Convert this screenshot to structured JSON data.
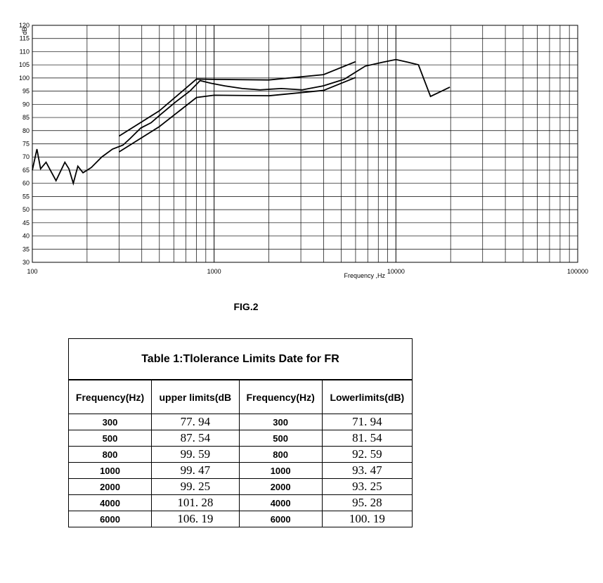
{
  "chart_data": {
    "type": "line",
    "x_label": "Frequency ,Hz",
    "y_label": "dB",
    "xscale": "log",
    "minor_grid": true,
    "xlim": [
      100,
      100000
    ],
    "xticks": [
      100,
      1000,
      10000,
      100000
    ],
    "ylim": [
      30,
      120
    ],
    "yticks": [
      30,
      35,
      40,
      45,
      50,
      55,
      60,
      65,
      70,
      75,
      80,
      85,
      90,
      95,
      100,
      105,
      110,
      115,
      120
    ],
    "grid": true,
    "series": [
      {
        "color": "#000000",
        "x": [
          300,
          500,
          800,
          1000,
          2000,
          4000,
          6000
        ],
        "values": [
          77.94,
          87.54,
          99.59,
          99.47,
          99.25,
          101.28,
          106.19
        ]
      },
      {
        "color": "#000000",
        "x": [
          300,
          500,
          800,
          1000,
          2000,
          4000,
          6000
        ],
        "values": [
          71.94,
          81.54,
          92.59,
          93.47,
          93.25,
          95.28,
          100.19
        ]
      },
      {
        "color": "#000000",
        "x": [
          100,
          106,
          111,
          119,
          135,
          151,
          159,
          168,
          178,
          190,
          211,
          241,
          276,
          315,
          345,
          395,
          450,
          515,
          617,
          735,
          837,
          961,
          1144,
          1430,
          1790,
          2340,
          3050,
          3980,
          5190,
          6780,
          8500,
          10000,
          11600,
          13300,
          15500,
          19800
        ],
        "values": [
          65,
          73,
          65.5,
          68,
          61,
          68,
          65.5,
          60,
          66.5,
          64,
          66,
          70,
          73,
          74.5,
          77,
          81,
          83,
          86.5,
          91,
          95,
          99,
          98,
          97,
          96,
          95.5,
          96,
          95.5,
          97,
          99.5,
          104.5,
          106,
          107,
          106,
          105,
          93,
          96.5
        ]
      }
    ]
  },
  "caption": "FIG.2",
  "table": {
    "title": "Table 1:Tlolerance Limits Date for FR",
    "headers": [
      "Frequency(Hz)",
      "upper limits(dB",
      "Frequency(Hz)",
      "Lowerlimits(dB)"
    ],
    "rows": [
      [
        "300",
        "77. 94",
        "300",
        "71. 94"
      ],
      [
        "500",
        "87. 54",
        "500",
        "81. 54"
      ],
      [
        "800",
        "99. 59",
        "800",
        "92. 59"
      ],
      [
        "1000",
        "99. 47",
        "1000",
        "93. 47"
      ],
      [
        "2000",
        "99. 25",
        "2000",
        "93. 25"
      ],
      [
        "4000",
        "101. 28",
        "4000",
        "95. 28"
      ],
      [
        "6000",
        "106. 19",
        "6000",
        "100. 19"
      ]
    ]
  }
}
